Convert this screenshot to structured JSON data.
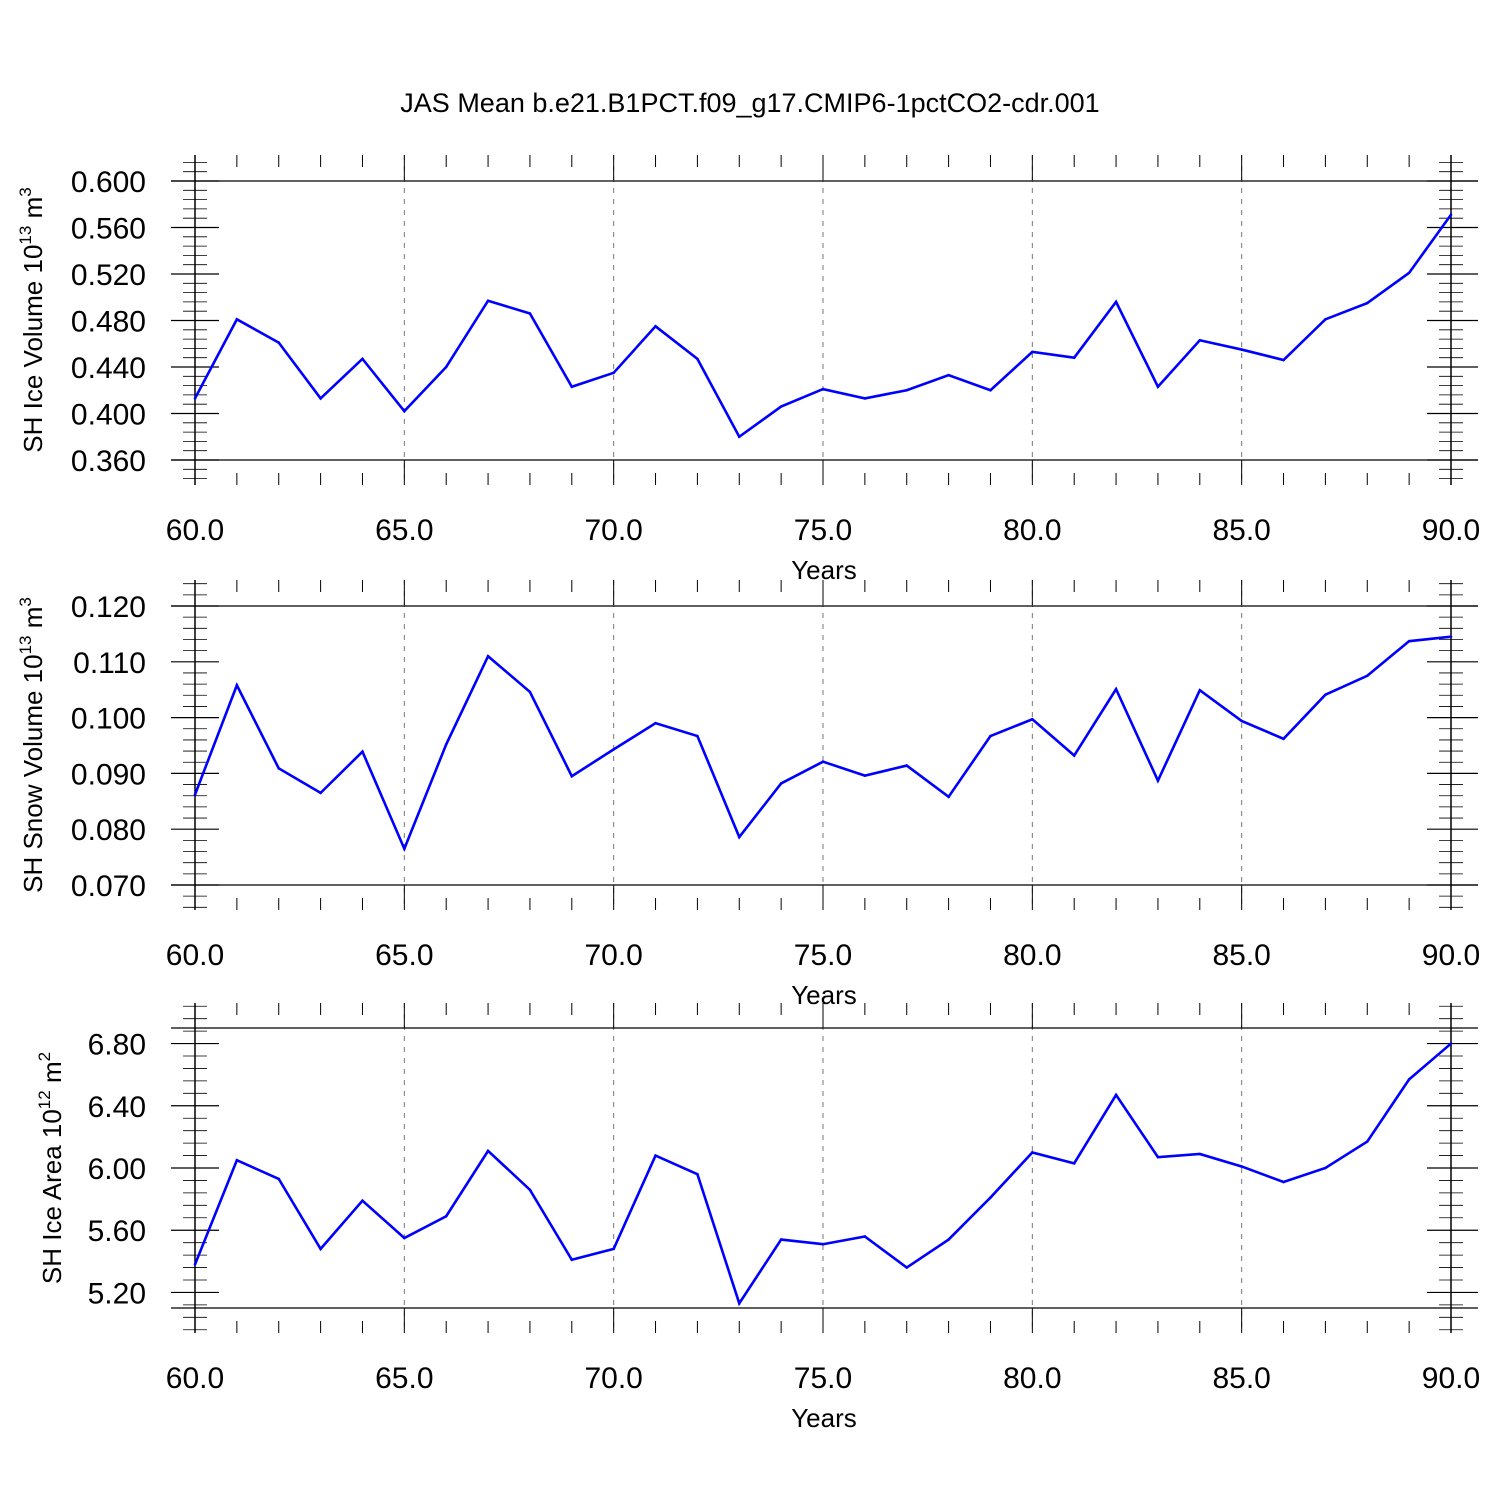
{
  "title": "JAS Mean b.e21.B1PCT.f09_g17.CMIP6-1pctCO2-cdr.001",
  "chart_data": [
    {
      "type": "line",
      "xlabel": "Years",
      "ylabel_main": "SH Ice Volume 10",
      "ylabel_exp": "13",
      "ylabel_unit": " m",
      "ylabel_unit_exp": "3",
      "xlim": [
        60,
        90
      ],
      "ylim": [
        0.36,
        0.6
      ],
      "xticks": [
        60,
        65,
        70,
        75,
        80,
        85,
        90
      ],
      "xtick_labels": [
        "60.0",
        "65.0",
        "70.0",
        "75.0",
        "80.0",
        "85.0",
        "90.0"
      ],
      "yticks": [
        0.36,
        0.4,
        0.44,
        0.48,
        0.52,
        0.56,
        0.6
      ],
      "ytick_labels": [
        "0.360",
        "0.400",
        "0.440",
        "0.480",
        "0.520",
        "0.560",
        "0.600"
      ],
      "y_minor_step": 0.008,
      "x_minor_step": 1,
      "grid": "vertical dashed at major x ticks",
      "color": "#0000ff",
      "x": [
        60,
        61,
        62,
        63,
        64,
        65,
        66,
        67,
        68,
        69,
        70,
        71,
        72,
        73,
        74,
        75,
        76,
        77,
        78,
        79,
        80,
        81,
        82,
        83,
        84,
        85,
        86,
        87,
        88,
        89,
        90
      ],
      "values": [
        0.413,
        0.481,
        0.461,
        0.413,
        0.447,
        0.402,
        0.44,
        0.497,
        0.486,
        0.423,
        0.435,
        0.475,
        0.447,
        0.38,
        0.406,
        0.421,
        0.413,
        0.42,
        0.433,
        0.42,
        0.453,
        0.448,
        0.496,
        0.423,
        0.463,
        0.455,
        0.446,
        0.481,
        0.495,
        0.521,
        0.571
      ]
    },
    {
      "type": "line",
      "xlabel": "Years",
      "ylabel_main": "SH Snow Volume 10",
      "ylabel_exp": "13",
      "ylabel_unit": " m",
      "ylabel_unit_exp": "3",
      "xlim": [
        60,
        90
      ],
      "ylim": [
        0.07,
        0.12
      ],
      "xticks": [
        60,
        65,
        70,
        75,
        80,
        85,
        90
      ],
      "xtick_labels": [
        "60.0",
        "65.0",
        "70.0",
        "75.0",
        "80.0",
        "85.0",
        "90.0"
      ],
      "yticks": [
        0.07,
        0.08,
        0.09,
        0.1,
        0.11,
        0.12
      ],
      "ytick_labels": [
        "0.070",
        "0.080",
        "0.090",
        "0.100",
        "0.110",
        "0.120"
      ],
      "y_minor_step": 0.002,
      "x_minor_step": 1,
      "grid": "vertical dashed at major x ticks",
      "color": "#0000ff",
      "x": [
        60,
        61,
        62,
        63,
        64,
        65,
        66,
        67,
        68,
        69,
        70,
        71,
        72,
        73,
        74,
        75,
        76,
        77,
        78,
        79,
        80,
        81,
        82,
        83,
        84,
        85,
        86,
        87,
        88,
        89,
        90
      ],
      "values": [
        0.0862,
        0.1058,
        0.0909,
        0.0865,
        0.0939,
        0.0765,
        0.0952,
        0.111,
        0.1046,
        0.0895,
        0.0943,
        0.099,
        0.0967,
        0.0786,
        0.0882,
        0.0921,
        0.0896,
        0.0914,
        0.0858,
        0.0967,
        0.0997,
        0.0932,
        0.1051,
        0.0887,
        0.1049,
        0.0994,
        0.0962,
        0.1041,
        0.1075,
        0.1137,
        0.1145
      ]
    },
    {
      "type": "line",
      "xlabel": "Years",
      "ylabel_main": "SH Ice Area 10",
      "ylabel_exp": "12",
      "ylabel_unit": " m",
      "ylabel_unit_exp": "2",
      "xlim": [
        60,
        90
      ],
      "ylim": [
        5.1,
        6.9
      ],
      "xticks": [
        60,
        65,
        70,
        75,
        80,
        85,
        90
      ],
      "xtick_labels": [
        "60.0",
        "65.0",
        "70.0",
        "75.0",
        "80.0",
        "85.0",
        "90.0"
      ],
      "yticks": [
        5.2,
        5.6,
        6.0,
        6.4,
        6.8
      ],
      "ytick_labels": [
        "5.20",
        "5.60",
        "6.00",
        "6.40",
        "6.80"
      ],
      "y_minor_step": 0.08,
      "x_minor_step": 1,
      "grid": "vertical dashed at major x ticks",
      "color": "#0000ff",
      "x": [
        60,
        61,
        62,
        63,
        64,
        65,
        66,
        67,
        68,
        69,
        70,
        71,
        72,
        73,
        74,
        75,
        76,
        77,
        78,
        79,
        80,
        81,
        82,
        83,
        84,
        85,
        86,
        87,
        88,
        89,
        90
      ],
      "values": [
        5.38,
        6.05,
        5.93,
        5.48,
        5.79,
        5.55,
        5.69,
        6.11,
        5.86,
        5.41,
        5.48,
        6.08,
        5.96,
        5.13,
        5.54,
        5.51,
        5.56,
        5.36,
        5.54,
        5.81,
        6.1,
        6.03,
        6.47,
        6.07,
        6.09,
        6.01,
        5.91,
        6.0,
        6.17,
        6.57,
        6.8
      ]
    }
  ]
}
